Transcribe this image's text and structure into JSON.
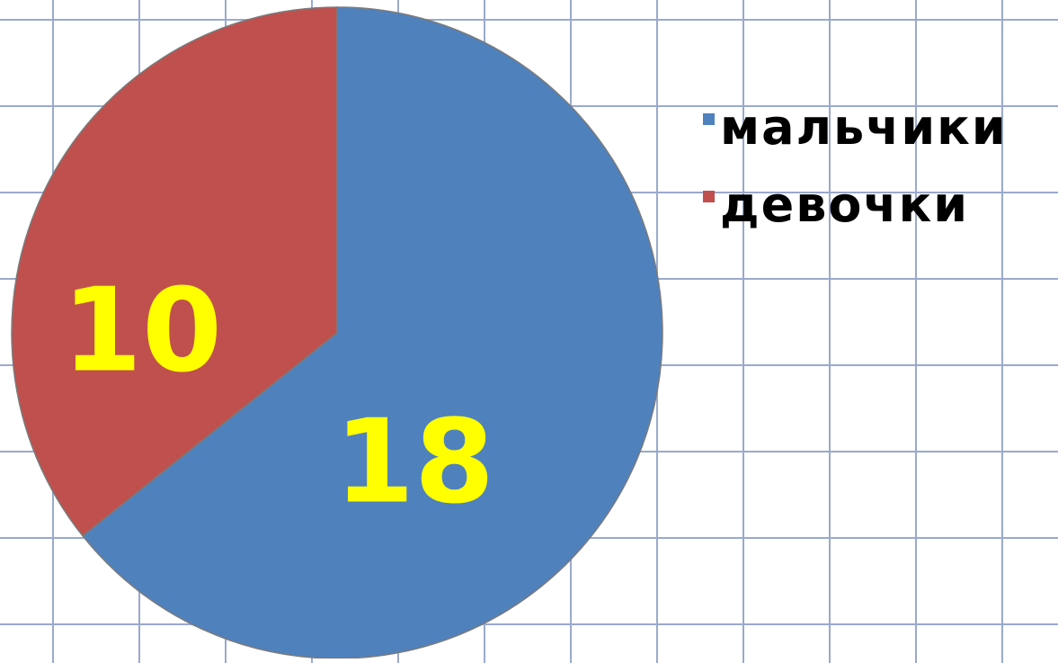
{
  "chart_data": {
    "type": "pie",
    "categories": [
      "мальчики",
      "девочки"
    ],
    "values": [
      18,
      10
    ],
    "data_labels": [
      "18",
      "10"
    ],
    "colors": [
      "#4f81bd",
      "#c0504d"
    ],
    "label_color": "#ffff00",
    "legend_position": "right",
    "grid": true
  }
}
